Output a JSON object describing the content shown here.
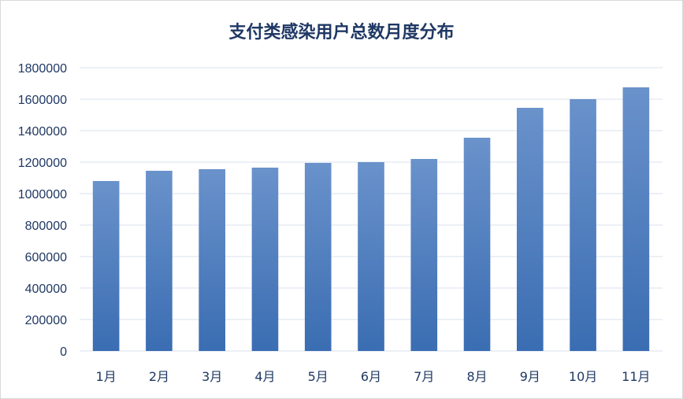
{
  "chart_data": {
    "type": "bar",
    "title": "支付类感染用户总数月度分布",
    "xlabel": "",
    "ylabel": "",
    "categories": [
      "1月",
      "2月",
      "3月",
      "4月",
      "5月",
      "6月",
      "7月",
      "8月",
      "9月",
      "10月",
      "11月"
    ],
    "values": [
      1080000,
      1145000,
      1155000,
      1165000,
      1195000,
      1200000,
      1220000,
      1355000,
      1545000,
      1600000,
      1675000
    ],
    "ylim": [
      0,
      1800000
    ],
    "yticks": [
      0,
      200000,
      400000,
      600000,
      800000,
      1000000,
      1200000,
      1400000,
      1600000,
      1800000
    ],
    "grid": true,
    "legend": "none",
    "colors": {
      "bar_top": "#6a92cb",
      "bar_bottom": "#3a6db2",
      "grid": "#d9e2ef",
      "text": "#1f3864"
    }
  }
}
